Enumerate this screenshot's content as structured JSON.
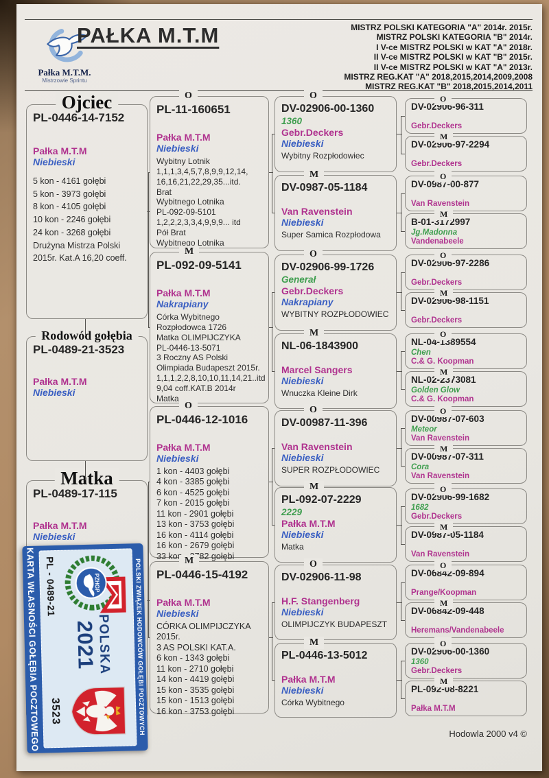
{
  "header": {
    "title": "PAŁKA M.T.M",
    "brand": {
      "name": "Pałka M.T.M.",
      "tagline": "Mistrzowie Sprintu"
    },
    "achievements": [
      "MISTRZ POLSKI KATEGORIA  \"A\" 2014r. 2015r.",
      "MISTRZ POLSKI KATEGORIA  \"B\" 2014r.",
      "I V-ce MISTRZ POLSKI  w KAT \"A\" 2018r.",
      "II V-ce MISTRZ POLSKI  w KAT \"B\" 2015r.",
      "II V-ce MISTRZ POLSKI  w KAT \"A\" 2013r.",
      "MISTRZ REG.KAT \"A\" 2018,2015,2014,2009,2008",
      "MISTRZ REG.KAT \"B\"  2018,2015,2014,2011"
    ]
  },
  "sections": {
    "father": "Ojciec",
    "subject": "Rodowód gołębia",
    "mother": "Matka"
  },
  "father": {
    "ring": "PL-0446-14-7152",
    "breeder": "Pałka M.T.M",
    "color": "Niebieski",
    "notes": [
      "5 kon - 4161 gołębi",
      "5 kon - 3973 gołębi",
      "8 kon - 4105 gołębi",
      "10 kon - 2246 gołębi",
      "24 kon - 3268 gołębi",
      "Drużyna Mistrza Polski",
      "2015r. Kat.A 16,20 coeff."
    ]
  },
  "subject": {
    "ring": "PL-0489-21-3523",
    "breeder": "Pałka M.T.M",
    "color": "Niebieski"
  },
  "mother": {
    "ring": "PL-0489-17-115",
    "breeder": "Pałka M.T.M",
    "color": "Niebieski"
  },
  "gen2": [
    {
      "label": "O",
      "ring": "PL-11-160651",
      "breeder": "Pałka M.T.M",
      "color": "Niebieski",
      "notes": [
        "Wybitny Lotnik",
        "1,1,1,3,4,5,7,8,9,9,12,14,",
        "16,16,21,22,29,35...itd.",
        "Brat",
        "Wybitnego Lotnika",
        "PL-092-09-5101",
        "1,2,2,2,3,3,4,9,9,9... itd",
        "Pół Brat",
        "Wybitnego Lotnika"
      ]
    },
    {
      "label": "M",
      "ring": "PL-092-09-5141",
      "breeder": "Pałka M.T.M",
      "color": "Nakrapiany",
      "notes": [
        "Córka Wybitnego",
        "Rozpłodowca 1726",
        "Matka OLIMPIJCZYKA",
        "PL-0446-13-5071",
        "3  Roczny AS  Polski",
        "Olimpiada Budapeszt 2015r.",
        "1,1,1,2,2,8,10,10,11,14,21..itd",
        "9,04 coff.KAT.B 2014r",
        "Matka"
      ]
    },
    {
      "label": "O",
      "ring": "PL-0446-12-1016",
      "breeder": "Pałka M.T.M",
      "color": "Niebieski",
      "notes": [
        "1 kon - 4403 gołębi",
        "4 kon - 3385 gołębi",
        "6 kon - 4525 gołębi",
        "7 kon - 2015 gołębi",
        "11 kon - 2901 gołębi",
        "13 kon - 3753 gołębi",
        "16 kon - 4114 gołębi",
        "16 kon - 2679 gołębi",
        "33 kon - 3782 gołębi"
      ]
    },
    {
      "label": "M",
      "ring": "PL-0446-15-4192",
      "breeder": "Pałka M.T.M",
      "color": "Niebieski",
      "notes": [
        "CÓRKA OLIMPIJCZYKA",
        "2015r.",
        "3 AS POLSKI KAT.A.",
        "6 kon - 1343 gołębi",
        "11 kon - 2710 gołębi",
        "14 kon - 4419 gołębi",
        "15 kon - 3535 gołębi",
        "15 kon - 1513 gołębi",
        "16 kon - 3753 gołębi"
      ]
    }
  ],
  "gen3": [
    {
      "label": "O",
      "ring": "DV-02906-00-1360",
      "name": "1360",
      "breeder": "Gebr.Deckers",
      "color": "Niebieski",
      "note": "Wybitny Rozpłodowiec"
    },
    {
      "label": "M",
      "ring": "DV-0987-05-1184",
      "name": "",
      "breeder": "Van Ravenstein",
      "color": "Niebieski",
      "note": "Super Samica Rozpłodowa"
    },
    {
      "label": "O",
      "ring": "DV-02906-99-1726",
      "name": "Generał",
      "breeder": "Gebr.Deckers",
      "color": "Nakrapiany",
      "note": "WYBITNY ROZPŁODOWIEC"
    },
    {
      "label": "M",
      "ring": "NL-06-1843900",
      "name": "",
      "breeder": "Marcel Sangers",
      "color": "Niebieski",
      "note": "Wnuczka Kleine Dirk"
    },
    {
      "label": "O",
      "ring": "DV-00987-11-396",
      "name": "",
      "breeder": "Van Ravenstein",
      "color": "Niebieski",
      "note": "SUPER ROZPŁODOWIEC"
    },
    {
      "label": "M",
      "ring": "PL-092-07-2229",
      "name": "2229",
      "breeder": "Pałka M.T.M",
      "color": "Niebieski",
      "note": "Matka"
    },
    {
      "label": "O",
      "ring": "DV-02906-11-98",
      "name": "",
      "breeder": "H.F. Stangenberg",
      "color": "Niebieski",
      "note": "OLIMPIJCZYK BUDAPESZT"
    },
    {
      "label": "M",
      "ring": "PL-0446-13-5012",
      "name": "",
      "breeder": "Pałka M.T.M",
      "color": "Niebieski",
      "note": "Córka Wybitnego"
    }
  ],
  "gen4": [
    {
      "label": "O",
      "ring": "DV-02906-96-311",
      "name": "",
      "breeder": "Gebr.Deckers"
    },
    {
      "label": "M",
      "ring": "DV-02906-97-2294",
      "name": "",
      "breeder": "Gebr.Deckers"
    },
    {
      "label": "O",
      "ring": "DV-0987-00-877",
      "name": "",
      "breeder": "Van Ravenstein"
    },
    {
      "label": "M",
      "ring": "B-01-3172997",
      "name": "Jg.Madonna",
      "breeder": "Vandenabeele"
    },
    {
      "label": "O",
      "ring": "DV-02906-97-2286",
      "name": "",
      "breeder": "Gebr.Deckers"
    },
    {
      "label": "M",
      "ring": "DV-02906-98-1151",
      "name": "",
      "breeder": "Gebr.Deckers"
    },
    {
      "label": "O",
      "ring": "NL-04-1389554",
      "name": "Chen",
      "breeder": "C.& G. Koopman"
    },
    {
      "label": "M",
      "ring": "NL-02-2373081",
      "name": "Golden Glow",
      "breeder": "C.& G. Koopman"
    },
    {
      "label": "O",
      "ring": "DV-00987-07-603",
      "name": "Meteor",
      "breeder": "Van Ravenstein"
    },
    {
      "label": "M",
      "ring": "DV-00987-07-311",
      "name": "Cora",
      "breeder": "Van Ravenstein"
    },
    {
      "label": "O",
      "ring": "DV-02906-99-1682",
      "name": "1682",
      "breeder": "Gebr.Deckers"
    },
    {
      "label": "M",
      "ring": "DV-0987-05-1184",
      "name": "",
      "breeder": "Van Ravenstein"
    },
    {
      "label": "O",
      "ring": "DV-06842-09-894",
      "name": "",
      "breeder": "Prange/Koopman"
    },
    {
      "label": "M",
      "ring": "DV-06842-09-448",
      "name": "",
      "breeder": "Heremans/Vandenabeele"
    },
    {
      "label": "O",
      "ring": "DV-02906-00-1360",
      "name": "1360",
      "breeder": "Gebr.Deckers"
    },
    {
      "label": "M",
      "ring": "PL-092-08-8221",
      "name": "",
      "breeder": "Pałka M.T.M"
    }
  ],
  "sticker": {
    "ownership_text": "KARTA WŁASNOŚCI GOŁĘBIA POCZTOWEGO",
    "federation_text": "POLSKI ZWIĄZEK HODOWCÓW GOŁĘBI POCZTOWYCH",
    "org_abbr": "PZHGP",
    "ring_number": "PL - 0489-21",
    "serial": "3523",
    "country": "POLSKA",
    "year": "2021"
  },
  "footer": {
    "credit": "Hodowla 2000 v4 ©"
  },
  "colors": {
    "breeder_magenta": "#b0338f",
    "color_blue": "#3a5fc2",
    "name_green": "#3f9e4f",
    "card_blue": "#2b5cab",
    "card_navy": "#1c3f7c"
  }
}
